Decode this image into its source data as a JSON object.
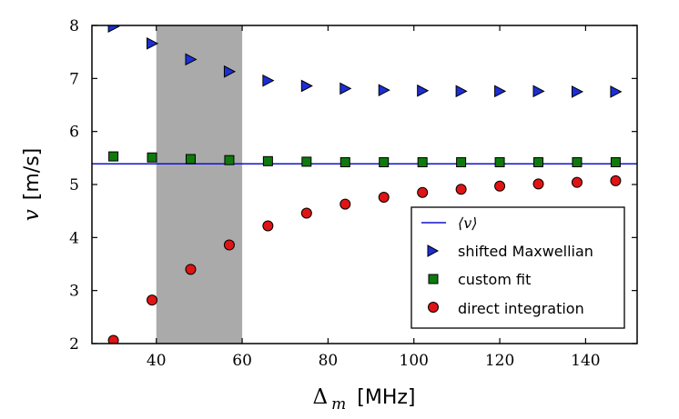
{
  "chart_data": {
    "type": "scatter",
    "xlim": [
      25,
      152
    ],
    "ylim": [
      2,
      8
    ],
    "x_ticks": [
      40,
      60,
      80,
      100,
      120,
      140
    ],
    "y_ticks": [
      2,
      3,
      4,
      5,
      6,
      7,
      8
    ],
    "x_tick_labels": [
      "40",
      "60",
      "80",
      "100",
      "120",
      "140"
    ],
    "y_tick_labels": [
      "2",
      "3",
      "4",
      "5",
      "6",
      "7",
      "8"
    ],
    "xlabel_symbol": "Δ",
    "xlabel_subscript": "m",
    "xlabel_unit": "[MHz]",
    "ylabel_symbol": "v",
    "ylabel_unit": "[m/s]",
    "grid": false,
    "legend_position": "bottom-right",
    "shaded_region": {
      "x_start": 40,
      "x_end": 60,
      "color": "#aaaaaa"
    },
    "mean_line": {
      "name": "⟨v⟩",
      "value": 5.39,
      "color": "#1111cc"
    },
    "x": [
      30,
      39,
      48,
      57,
      66,
      75,
      84,
      93,
      102,
      111,
      120,
      129,
      138,
      147
    ],
    "series": [
      {
        "name": "shifted Maxwellian",
        "marker": "triangle-right",
        "color": "#1c2fd6",
        "values": [
          7.98,
          7.66,
          7.36,
          7.13,
          6.96,
          6.86,
          6.81,
          6.78,
          6.77,
          6.76,
          6.76,
          6.76,
          6.75,
          6.75
        ]
      },
      {
        "name": "custom fit",
        "marker": "square",
        "color": "#0e7a0e",
        "values": [
          5.53,
          5.51,
          5.48,
          5.46,
          5.44,
          5.43,
          5.42,
          5.42,
          5.42,
          5.42,
          5.42,
          5.42,
          5.42,
          5.42
        ]
      },
      {
        "name": "direct integration",
        "marker": "circle",
        "color": "#e01414",
        "values": [
          2.06,
          2.82,
          3.4,
          3.86,
          4.22,
          4.46,
          4.63,
          4.76,
          4.85,
          4.91,
          4.97,
          5.01,
          5.04,
          5.07
        ]
      }
    ]
  }
}
